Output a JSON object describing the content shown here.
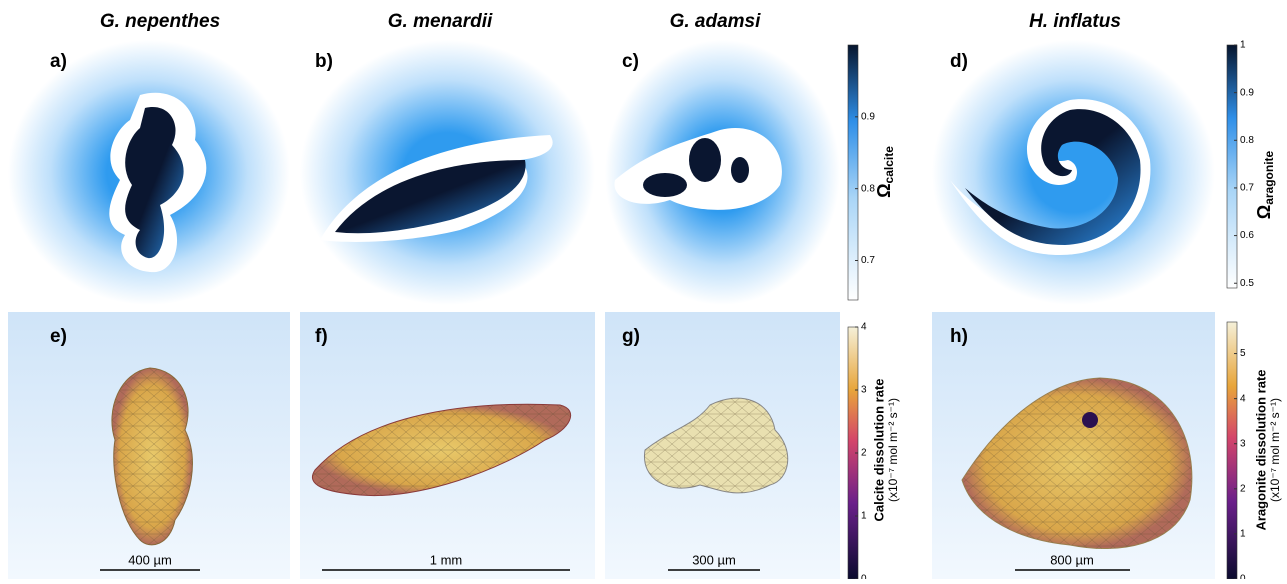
{
  "columns": [
    {
      "species": "G. nepenthes",
      "top_label": "a)",
      "bottom_label": "e)",
      "scale_bar": "400 µm"
    },
    {
      "species": "G. menardii",
      "top_label": "b)",
      "bottom_label": "f)",
      "scale_bar": "1 mm"
    },
    {
      "species": "G. adamsi",
      "top_label": "c)",
      "bottom_label": "g)",
      "scale_bar": "300 µm"
    },
    {
      "species": "H. inflatus",
      "top_label": "d)",
      "bottom_label": "h)",
      "scale_bar": "800 µm"
    }
  ],
  "colorbars": [
    {
      "symbol": "Ω",
      "subscript": "calcite",
      "lim": [
        0.645,
        1.0
      ],
      "ticks": [
        0.7,
        0.8,
        0.9
      ]
    },
    {
      "symbol": "Ω",
      "subscript": "aragonite",
      "lim": [
        0.49,
        1.0
      ],
      "ticks": [
        0.5,
        0.6,
        0.7,
        0.8,
        0.9,
        1
      ]
    },
    {
      "title": "Calcite dissolution rate",
      "unit": "(x10⁻⁷ mol m⁻² s⁻¹)",
      "lim": [
        0,
        4
      ],
      "ticks": [
        0,
        1,
        2,
        3,
        4
      ]
    },
    {
      "title": "Aragonite dissolution rate",
      "unit": "(x10⁻⁷ mol m⁻² s⁻¹)",
      "lim": [
        0,
        5.7
      ],
      "ticks": [
        0,
        1,
        2,
        3,
        4,
        5
      ]
    }
  ]
}
